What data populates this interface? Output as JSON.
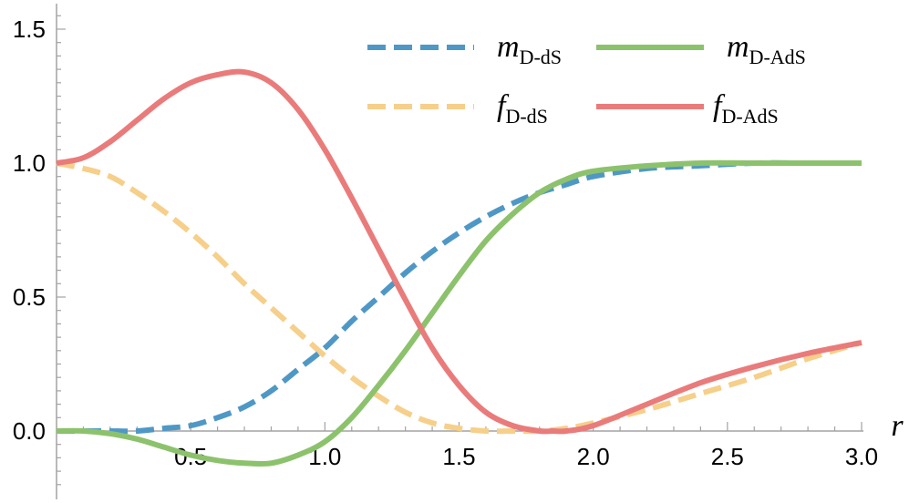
{
  "chart_data": {
    "type": "line",
    "xlabel": "r",
    "ylabel": "",
    "xlim": [
      0,
      3.0
    ],
    "ylim": [
      -0.25,
      1.6
    ],
    "x_ticks": [
      "0.5",
      "1.0",
      "1.5",
      "2.0",
      "2.5",
      "3.0"
    ],
    "y_ticks": [
      "0.0",
      "0.5",
      "1.0",
      "1.5"
    ],
    "legend_position": "top-right",
    "series": [
      {
        "name": "m_D-dS",
        "label_main": "m",
        "label_sub": "D-dS",
        "color": "#4f98c6",
        "dash": true,
        "x": [
          0,
          0.1,
          0.2,
          0.3,
          0.4,
          0.5,
          0.6,
          0.7,
          0.8,
          0.9,
          1.0,
          1.1,
          1.2,
          1.3,
          1.4,
          1.5,
          1.6,
          1.7,
          1.8,
          1.9,
          2.0,
          2.2,
          2.4,
          2.6,
          2.8,
          3.0
        ],
        "y": [
          0,
          0,
          0,
          0,
          0.01,
          0.02,
          0.05,
          0.09,
          0.15,
          0.23,
          0.31,
          0.41,
          0.5,
          0.59,
          0.67,
          0.74,
          0.8,
          0.85,
          0.89,
          0.92,
          0.95,
          0.98,
          0.99,
          1.0,
          1.0,
          1.0
        ]
      },
      {
        "name": "m_D-AdS",
        "label_main": "m",
        "label_sub": "D-AdS",
        "color": "#8cc26c",
        "dash": false,
        "x": [
          0,
          0.1,
          0.2,
          0.3,
          0.4,
          0.5,
          0.6,
          0.7,
          0.8,
          0.9,
          1.0,
          1.1,
          1.2,
          1.3,
          1.4,
          1.5,
          1.6,
          1.7,
          1.8,
          1.9,
          2.0,
          2.2,
          2.4,
          2.6,
          2.8,
          3.0
        ],
        "y": [
          0,
          0,
          -0.01,
          -0.03,
          -0.06,
          -0.09,
          -0.11,
          -0.12,
          -0.12,
          -0.09,
          -0.04,
          0.05,
          0.17,
          0.3,
          0.44,
          0.58,
          0.71,
          0.81,
          0.89,
          0.94,
          0.97,
          0.99,
          1.0,
          1.0,
          1.0,
          1.0
        ]
      },
      {
        "name": "f_D-dS",
        "label_main": "f",
        "label_sub": "D-dS",
        "color": "#f6cf8a",
        "dash": true,
        "x": [
          0,
          0.1,
          0.2,
          0.3,
          0.4,
          0.5,
          0.6,
          0.7,
          0.8,
          0.9,
          1.0,
          1.1,
          1.2,
          1.3,
          1.4,
          1.5,
          1.6,
          1.7,
          1.8,
          1.9,
          2.0,
          2.2,
          2.4,
          2.6,
          2.8,
          3.0
        ],
        "y": [
          1.0,
          0.98,
          0.95,
          0.89,
          0.82,
          0.74,
          0.65,
          0.55,
          0.46,
          0.37,
          0.28,
          0.2,
          0.13,
          0.07,
          0.03,
          0.01,
          0.0,
          0.0,
          0.0,
          0.01,
          0.03,
          0.08,
          0.14,
          0.2,
          0.27,
          0.33
        ]
      },
      {
        "name": "f_D-AdS",
        "label_main": "f",
        "label_sub": "D-AdS",
        "color": "#ea7b7b",
        "dash": false,
        "x": [
          0,
          0.1,
          0.2,
          0.3,
          0.4,
          0.5,
          0.6,
          0.7,
          0.8,
          0.9,
          1.0,
          1.1,
          1.2,
          1.3,
          1.4,
          1.5,
          1.6,
          1.7,
          1.8,
          1.85,
          1.9,
          2.0,
          2.2,
          2.4,
          2.6,
          2.8,
          3.0
        ],
        "y": [
          1.0,
          1.02,
          1.08,
          1.16,
          1.24,
          1.3,
          1.33,
          1.34,
          1.3,
          1.2,
          1.05,
          0.87,
          0.68,
          0.49,
          0.31,
          0.17,
          0.07,
          0.02,
          0.0,
          0.0,
          0.0,
          0.02,
          0.1,
          0.18,
          0.24,
          0.29,
          0.33
        ]
      }
    ]
  }
}
